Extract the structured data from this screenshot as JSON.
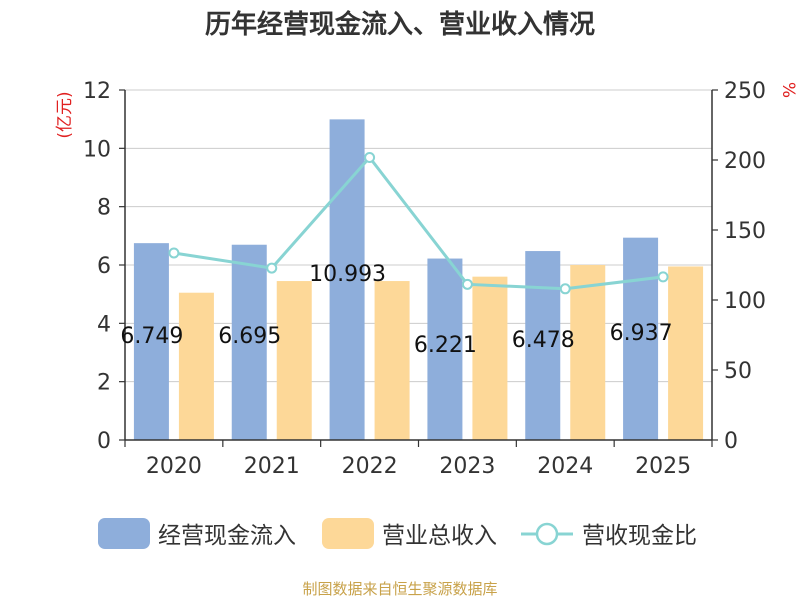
{
  "page": {
    "title": "历年经营现金流入、营业收入情况",
    "credit": "制图数据来自恒生聚源数据库"
  },
  "colors": {
    "bar1": "#8eaedb",
    "bar2": "#fdd898",
    "line": "#88d4d3",
    "unit": "#e02020",
    "axis": "#333333",
    "grid": "#cccccc"
  },
  "chart_data": {
    "type": "bar",
    "title": "历年经营现金流入、营业收入情况",
    "categories": [
      "2020",
      "2021",
      "2022",
      "2023",
      "2024",
      "2025"
    ],
    "y_left": {
      "unit_label": "(亿元)",
      "range": [
        0,
        12
      ],
      "ticks": [
        "0",
        "2",
        "4",
        "6",
        "8",
        "10",
        "12"
      ]
    },
    "y_right": {
      "unit_label": "%",
      "range": [
        0,
        250
      ],
      "ticks": [
        "0",
        "50",
        "100",
        "150",
        "200",
        "250"
      ]
    },
    "series": [
      {
        "name": "经营现金流入",
        "type": "bar",
        "axis": "left",
        "values": [
          6.749,
          6.695,
          10.993,
          6.221,
          6.478,
          6.937
        ],
        "labels": [
          "6.749",
          "6.695",
          "10.993",
          "6.221",
          "6.478",
          "6.937"
        ]
      },
      {
        "name": "营业总收入",
        "type": "bar",
        "axis": "left",
        "values": [
          5.05,
          5.45,
          5.45,
          5.6,
          6.0,
          5.95
        ]
      },
      {
        "name": "营收现金比",
        "type": "line",
        "axis": "right",
        "values": [
          133.6,
          122.8,
          201.8,
          111.2,
          108.0,
          116.5
        ]
      }
    ],
    "grid": true,
    "legend": "bottom"
  }
}
